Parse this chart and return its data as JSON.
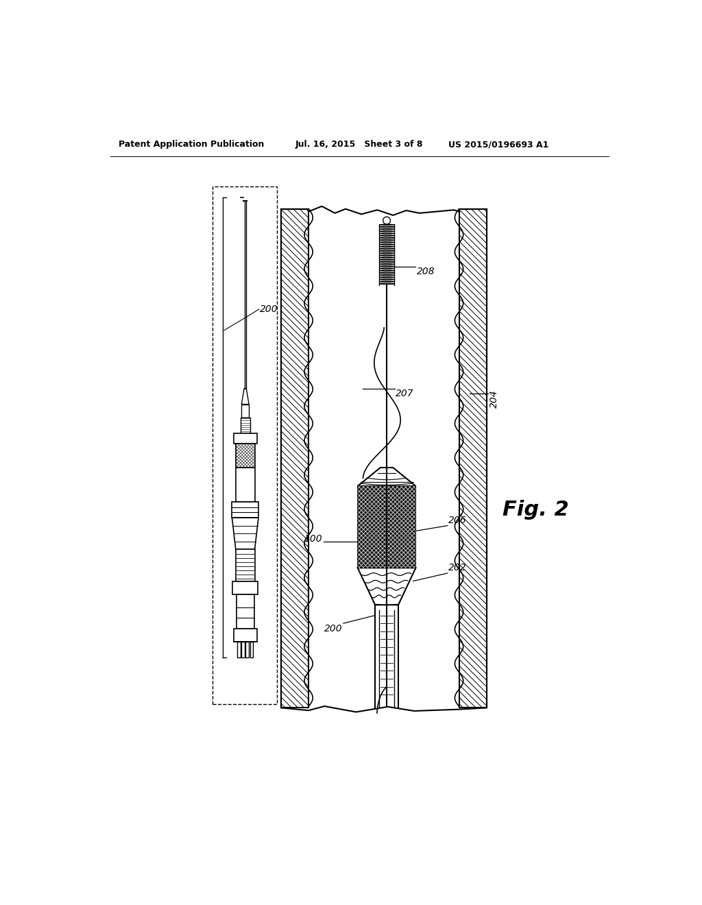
{
  "background_color": "#ffffff",
  "header_left": "Patent Application Publication",
  "header_center": "Jul. 16, 2015   Sheet 3 of 8",
  "header_right": "US 2015/0196693 A1",
  "fig_label": "Fig. 2",
  "labels": {
    "200_top": "200",
    "208": "208",
    "207": "207",
    "204": "204",
    "206": "206",
    "202": "202",
    "100": "100",
    "200_bot": "200"
  }
}
